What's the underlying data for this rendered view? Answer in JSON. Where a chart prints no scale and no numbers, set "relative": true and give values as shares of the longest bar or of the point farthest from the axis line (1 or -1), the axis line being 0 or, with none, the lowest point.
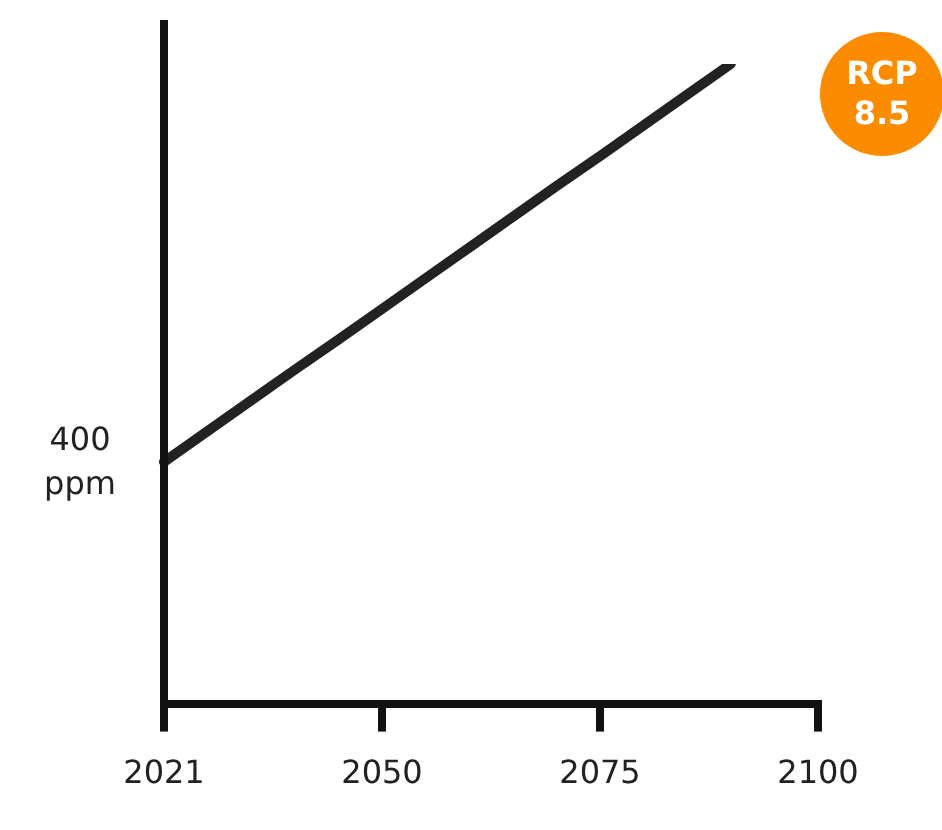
{
  "chart_data": {
    "type": "line",
    "relative": true,
    "grid": false,
    "legend": false,
    "marker": "none",
    "line_style": "solid",
    "categories": [
      "2021",
      null,
      null,
      null,
      null,
      "2050",
      null,
      null,
      null,
      null,
      "2075",
      null,
      null,
      null,
      null,
      "2100"
    ],
    "series": [
      {
        "color": "#222222",
        "values": [
          0.378,
          0.426,
          0.474,
          0.522,
          0.569,
          0.617,
          0.665,
          0.713,
          0.761,
          0.809,
          0.856,
          0.904,
          0.952,
          1,
          null,
          null
        ]
      }
    ],
    "annotations": [
      "400 ppm",
      "RCP 8.5"
    ]
  }
}
